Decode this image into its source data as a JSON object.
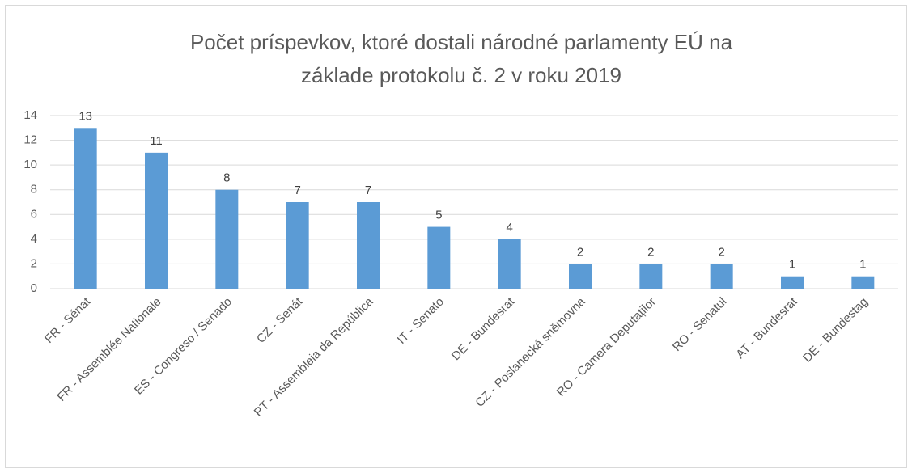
{
  "chart_data": {
    "type": "bar",
    "title": [
      "Počet príspevkov,  ktoré dostali národné parlamenty EÚ na",
      "základe protokolu č. 2 v roku 2019"
    ],
    "categories": [
      "FR - Sénat",
      "FR - Assemblée Nationale",
      "ES - Congreso / Senado",
      "CZ - Senát",
      "PT - Assembleia da República",
      "IT - Senato",
      "DE - Bundesrat",
      "CZ - Poslanecká sněmovna",
      "RO - Camera Deputaților",
      "RO - Senatul",
      "AT - Bundesrat",
      "DE - Bundestag"
    ],
    "values": [
      13,
      11,
      8,
      7,
      7,
      5,
      4,
      2,
      2,
      2,
      1,
      1
    ],
    "color": "#5b9bd5",
    "ylim": [
      0,
      14
    ],
    "yticks": [
      0,
      2,
      4,
      6,
      8,
      10,
      12,
      14
    ],
    "grid": true
  }
}
